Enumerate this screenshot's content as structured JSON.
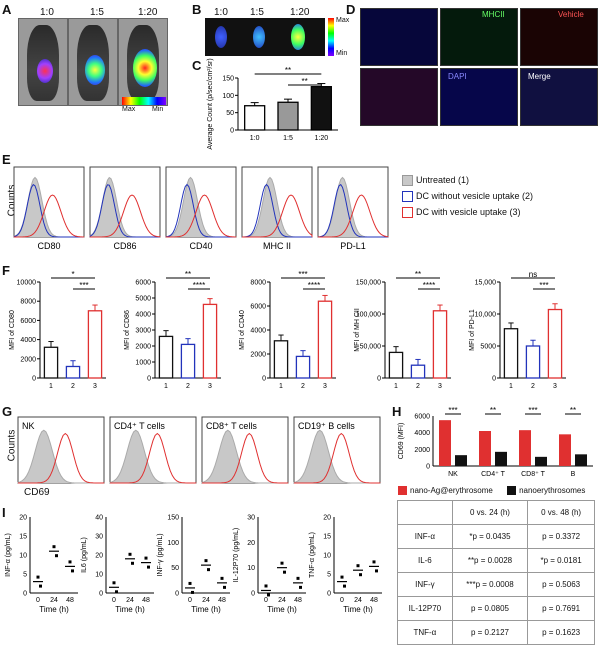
{
  "panels": {
    "A": {
      "letter": "A",
      "labels": [
        "1:0",
        "1:5",
        "1:20"
      ],
      "scale": {
        "max": "Max",
        "min": "Min"
      }
    },
    "B": {
      "letter": "B",
      "labels": [
        "1:0",
        "1:5",
        "1:20"
      ],
      "scale": {
        "max": "Max",
        "min": "Min"
      }
    },
    "C": {
      "letter": "C"
    },
    "D": {
      "letter": "D",
      "labels": [
        "MHCII",
        "Vehicle",
        "DAPI",
        "Merge"
      ]
    },
    "E": {
      "letter": "E",
      "ylabel": "Counts",
      "markers": [
        "CD80",
        "CD86",
        "CD40",
        "MHC II",
        "PD-L1"
      ],
      "legend": [
        "Untreated (1)",
        "DC without vesicle uptake (2)",
        "DC with vesicle uptake (3)"
      ]
    },
    "F": {
      "letter": "F"
    },
    "G": {
      "letter": "G",
      "ylabel": "Counts",
      "xlabel": "CD69",
      "cells": [
        "NK",
        "CD4⁺ T cells",
        "CD8⁺ T cells",
        "CD19⁺ B cells"
      ]
    },
    "H": {
      "letter": "H"
    },
    "I": {
      "letter": "I"
    }
  },
  "colors": {
    "untreated": "#c8c8c8",
    "blue": "#2233bb",
    "red": "#e03030",
    "black": "#111111"
  },
  "chart_data": [
    {
      "panel": "C",
      "type": "bar",
      "categories": [
        "1:0",
        "1:5",
        "1:20"
      ],
      "values": [
        70,
        80,
        125
      ],
      "ylabel": "Average Count (p/sec/cm²/sr)",
      "ylim": [
        0,
        150
      ],
      "yticks": [
        "0",
        "50",
        "100",
        "150"
      ],
      "sig": [
        "**",
        "**"
      ]
    },
    {
      "panel": "F",
      "type": "bar",
      "ylabel": "MFI of CD80",
      "categories": [
        "1",
        "2",
        "3"
      ],
      "values": [
        3200,
        1200,
        7000
      ],
      "ylim": [
        0,
        10000
      ],
      "yticks": [
        "0",
        "2000",
        "4000",
        "6000",
        "8000",
        "10000"
      ],
      "sig": [
        "*",
        "***"
      ]
    },
    {
      "panel": "F",
      "type": "bar",
      "ylabel": "MFI of CD86",
      "categories": [
        "1",
        "2",
        "3"
      ],
      "values": [
        2600,
        2100,
        4600
      ],
      "ylim": [
        0,
        6000
      ],
      "yticks": [
        "0",
        "1000",
        "2000",
        "3000",
        "4000",
        "5000",
        "6000"
      ],
      "sig": [
        "**",
        "****"
      ]
    },
    {
      "panel": "F",
      "type": "bar",
      "ylabel": "MFI of CD40",
      "categories": [
        "1",
        "2",
        "3"
      ],
      "values": [
        3100,
        1800,
        6400
      ],
      "ylim": [
        0,
        8000
      ],
      "yticks": [
        "0",
        "2000",
        "4000",
        "6000",
        "8000"
      ],
      "sig": [
        "***",
        "****"
      ]
    },
    {
      "panel": "F",
      "type": "bar",
      "ylabel": "MFI of MH CII",
      "categories": [
        "1",
        "2",
        "3"
      ],
      "values": [
        40000,
        20000,
        105000
      ],
      "ylim": [
        0,
        150000
      ],
      "yticks": [
        "0",
        "50,000",
        "100,000",
        "150,000"
      ],
      "sig": [
        "**",
        "****"
      ]
    },
    {
      "panel": "F",
      "type": "bar",
      "ylabel": "MFI of PD-L1",
      "categories": [
        "1",
        "2",
        "3"
      ],
      "values": [
        7700,
        5000,
        10700
      ],
      "ylim": [
        0,
        15000
      ],
      "yticks": [
        "0",
        "5000",
        "10,000",
        "15,000"
      ],
      "sig": [
        "ns",
        "***"
      ]
    },
    {
      "panel": "H",
      "type": "bar",
      "ylabel": "CD69 (MFI)",
      "categories": [
        "NK",
        "CD4⁺ T",
        "CD8⁺ T",
        "B"
      ],
      "series": [
        {
          "name": "nano-Ag@erythrosome",
          "values": [
            5500,
            4200,
            4300,
            3800
          ]
        },
        {
          "name": "nanoerythrosomes",
          "values": [
            1300,
            1700,
            1100,
            1400
          ]
        }
      ],
      "ylim": [
        0,
        6000
      ],
      "yticks": [
        "0",
        "2000",
        "4000",
        "6000"
      ],
      "sig": [
        "***",
        "**",
        "***",
        "**"
      ]
    },
    {
      "panel": "I",
      "type": "scatter",
      "ylabel": "INF-α (pg/mL)",
      "xlabel": "Time (h)",
      "categories": [
        "0",
        "24",
        "48"
      ],
      "means": [
        3,
        11,
        7
      ],
      "ylim": [
        0,
        20
      ],
      "yticks": [
        "0",
        "5",
        "10",
        "15",
        "20"
      ]
    },
    {
      "panel": "I",
      "type": "scatter",
      "ylabel": "IL6 (pg/mL)",
      "xlabel": "Time (h)",
      "categories": [
        "0",
        "24",
        "48"
      ],
      "means": [
        3,
        18,
        16
      ],
      "ylim": [
        0,
        40
      ],
      "yticks": [
        "0",
        "10",
        "20",
        "30",
        "40"
      ]
    },
    {
      "panel": "I",
      "type": "scatter",
      "ylabel": "INF-γ (pg/mL)",
      "xlabel": "Time (h)",
      "categories": [
        "0",
        "24",
        "48"
      ],
      "means": [
        10,
        55,
        20
      ],
      "ylim": [
        0,
        150
      ],
      "yticks": [
        "0",
        "50",
        "100",
        "150"
      ]
    },
    {
      "panel": "I",
      "type": "scatter",
      "ylabel": "IL-12P70 (pg/mL)",
      "xlabel": "Time (h)",
      "categories": [
        "0",
        "24",
        "48"
      ],
      "means": [
        1,
        10,
        4
      ],
      "ylim": [
        0,
        30
      ],
      "yticks": [
        "0",
        "10",
        "20",
        "30"
      ]
    },
    {
      "panel": "I",
      "type": "scatter",
      "ylabel": "TNF-α (pg/mL)",
      "xlabel": "Time (h)",
      "categories": [
        "0",
        "24",
        "48"
      ],
      "means": [
        3,
        6,
        7
      ],
      "ylim": [
        0,
        20
      ],
      "yticks": [
        "0",
        "5",
        "10",
        "15",
        "20"
      ]
    }
  ],
  "legend_H": [
    "nano-Ag@erythrosome",
    "nanoerythrosomes"
  ],
  "stats_table": {
    "headers": [
      "",
      "0 vs. 24 (h)",
      "0 vs. 48 (h)"
    ],
    "rows": [
      [
        "INF-α",
        "*p = 0.0435",
        "p = 0.3372"
      ],
      [
        "IL-6",
        "**p = 0.0028",
        "*p = 0.0181"
      ],
      [
        "INF-γ",
        "***p = 0.0008",
        "p = 0.5063"
      ],
      [
        "IL-12P70",
        "p = 0.0805",
        "p = 0.7691"
      ],
      [
        "TNF-α",
        "p = 0.2127",
        "p = 0.1623"
      ]
    ]
  }
}
